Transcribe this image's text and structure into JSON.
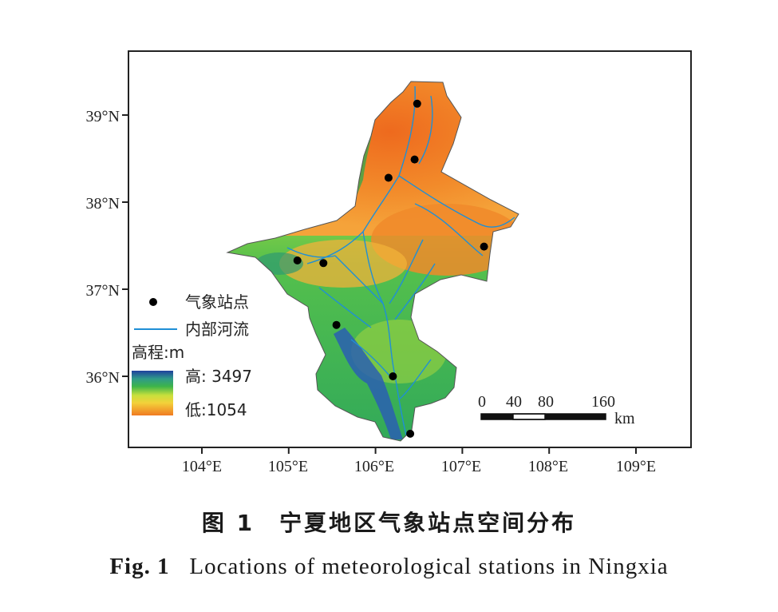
{
  "map": {
    "y_ticks": [
      "39°N",
      "38°N",
      "37°N",
      "36°N"
    ],
    "x_ticks": [
      "104°E",
      "105°E",
      "106°E",
      "107°E",
      "108°E",
      "109°E"
    ],
    "stations": [
      {
        "lon": 106.48,
        "lat": 39.13
      },
      {
        "lon": 106.45,
        "lat": 38.49
      },
      {
        "lon": 106.15,
        "lat": 38.28
      },
      {
        "lon": 107.25,
        "lat": 37.49
      },
      {
        "lon": 105.1,
        "lat": 37.33
      },
      {
        "lon": 105.4,
        "lat": 37.3
      },
      {
        "lon": 105.55,
        "lat": 36.59
      },
      {
        "lon": 106.2,
        "lat": 36.0
      },
      {
        "lon": 106.4,
        "lat": 35.34
      }
    ],
    "legend": {
      "station_label": "气象站点",
      "river_label": "内部河流",
      "elevation_title": "高程:m",
      "high_label": "高: 3497",
      "low_label": "低:1054"
    },
    "scale_bar": {
      "ticks": [
        "0",
        "40",
        "80",
        "160"
      ],
      "unit": "km"
    },
    "colors": {
      "river": "#1f8fd6",
      "elev_high": "#1f4fa8",
      "elev_mid": "#3cb44a",
      "elev_low": "#f07a22",
      "station": "#000000"
    }
  },
  "caption": {
    "cn": "图 1　宁夏地区气象站点空间分布",
    "en_number": "Fig. 1",
    "en_text": "Locations of meteorological stations in Ningxia"
  }
}
